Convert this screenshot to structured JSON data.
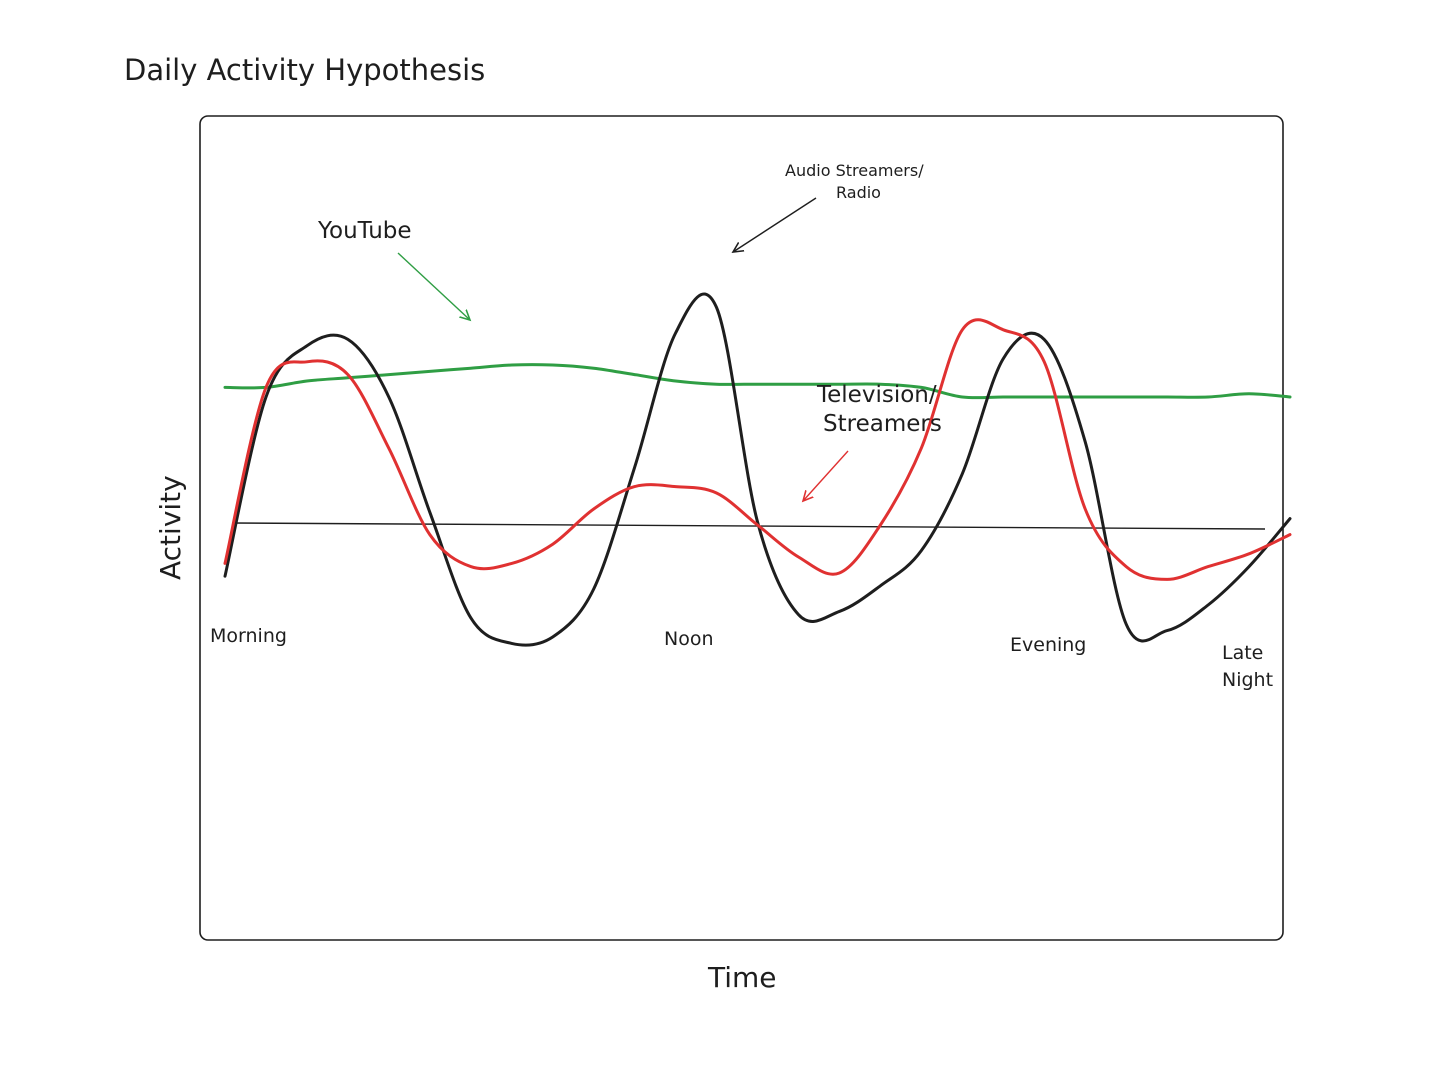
{
  "chart_data": {
    "type": "line",
    "title": "Daily Activity Hypothesis",
    "xlabel": "Time",
    "ylabel": "Activity",
    "categories": [
      "Morning",
      "Noon",
      "Evening",
      "Late Night"
    ],
    "x": [
      0,
      1,
      2,
      3,
      4,
      5,
      6,
      7,
      8,
      9,
      10,
      11,
      12,
      13,
      14,
      15,
      16,
      17,
      18,
      19,
      20,
      21,
      22,
      23,
      24,
      25,
      26
    ],
    "ylim": [
      -100,
      100
    ],
    "grid": false,
    "legend": "none",
    "baseline": 0,
    "series": [
      {
        "name": "YouTube",
        "color": "#2f9e44",
        "values": [
          43,
          43,
          45,
          46,
          47,
          48,
          49,
          50,
          50,
          49,
          47,
          45,
          44,
          44,
          44,
          44,
          44,
          43,
          40,
          40,
          40,
          40,
          40,
          40,
          40,
          41,
          40
        ]
      },
      {
        "name": "Audio Streamers/ Radio",
        "color": "#1e1e1e",
        "values": [
          -16,
          40,
          56,
          58,
          40,
          4,
          -29,
          -37,
          -35,
          -20,
          18,
          60,
          68,
          1,
          -28,
          -27,
          -19,
          -8,
          16,
          52,
          58,
          26,
          -31,
          -33,
          -25,
          -13,
          2
        ]
      },
      {
        "name": "Television/ Streamers",
        "color": "#e03131",
        "values": [
          -12,
          43,
          51,
          47,
          24,
          -3,
          -13,
          -12,
          -6,
          5,
          12,
          12,
          10,
          0,
          -10,
          -15,
          0,
          24,
          61,
          61,
          51,
          5,
          -13,
          -17,
          -13,
          -9,
          -3
        ]
      }
    ],
    "annotations": [
      {
        "text": "YouTube",
        "series": "YouTube"
      },
      {
        "text": "Audio Streamers/",
        "text2": "Radio",
        "series": "Audio Streamers/ Radio"
      },
      {
        "text": "Television/",
        "text2": "Streamers",
        "series": "Television/ Streamers"
      }
    ]
  }
}
